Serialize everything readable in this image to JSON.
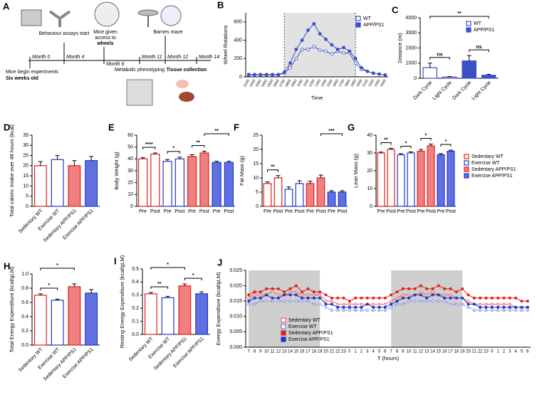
{
  "timeline": {
    "label": "A",
    "months": [
      "Month 0",
      "Month 4",
      "Month 6",
      "Month 11",
      "Month 12",
      "Month 14"
    ],
    "events": {
      "behaviour": "Behaviour assays start",
      "wheels_pre": "Mice given",
      "wheels_mid": "access to",
      "wheels": "wheels",
      "barnes": "Barnes maze",
      "begin": "Mice begin experiments",
      "age": "Six weeks old",
      "metabolic": "Metabolic phenotyping",
      "tissue": "Tissue collection"
    }
  },
  "chart_data": [
    {
      "type": "line",
      "label": "B",
      "ylabel": "Wheel Rotations",
      "xlabel": "Time",
      "categories": [
        "0100",
        "0200",
        "0300",
        "0400",
        "0500",
        "0600",
        "0700",
        "0800",
        "0900",
        "1000",
        "1100",
        "1200",
        "1300",
        "1400",
        "1500",
        "1600",
        "1700",
        "1800",
        "1900",
        "2000",
        "2100",
        "2200",
        "2300",
        "2400"
      ],
      "shade": [
        "0700",
        "1900"
      ],
      "ylim": [
        0,
        700
      ],
      "yticks": [
        0,
        200,
        400,
        600
      ],
      "legend": "top-right",
      "series": [
        {
          "name": "WT",
          "color": "#3a4fc8",
          "filled": false,
          "values": [
            20,
            20,
            20,
            20,
            20,
            20,
            40,
            100,
            200,
            300,
            300,
            330,
            290,
            280,
            250,
            280,
            260,
            260,
            150,
            80,
            60,
            40,
            30,
            20
          ]
        },
        {
          "name": "APP/PS1",
          "color": "#3a4fc8",
          "filled": true,
          "values": [
            25,
            25,
            25,
            25,
            25,
            25,
            50,
            150,
            300,
            400,
            510,
            580,
            470,
            410,
            350,
            300,
            320,
            280,
            200,
            100,
            60,
            40,
            30,
            20
          ]
        }
      ]
    },
    {
      "type": "bar",
      "label": "C",
      "ylabel": "Distance (m)",
      "categories": [
        "Dark Cycle",
        "Light Cycle",
        "Dark Cycle",
        "Light Cycle"
      ],
      "values": [
        700,
        80,
        1150,
        200
      ],
      "errors": [
        300,
        30,
        350,
        60
      ],
      "colors": [
        "#3a4fc8",
        "#3a4fc8",
        "#3a4fc8",
        "#3a4fc8"
      ],
      "fills": [
        "#ffffff",
        "#ffffff",
        "#3a4fc8",
        "#3a4fc8"
      ],
      "ylim": [
        0,
        4000
      ],
      "yticks": [
        0,
        1000,
        2000,
        3000,
        4000
      ],
      "annotations": [
        "ns",
        "ns",
        "**"
      ],
      "legend": "top-right",
      "legend_entries": [
        {
          "name": "WT",
          "color": "#3a4fc8",
          "fill": "#ffffff"
        },
        {
          "name": "APP/PS1",
          "color": "#3a4fc8",
          "fill": "#3a4fc8"
        }
      ]
    },
    {
      "type": "bar",
      "label": "D",
      "ylabel": "Total caloric intake over 48 hours (kcal)",
      "categories": [
        "Sedentary WT",
        "Exercise WT",
        "Sedentary APP/PS1",
        "Exercise APP/PS1"
      ],
      "values": [
        20,
        23,
        20,
        22.5
      ],
      "errors": [
        2,
        2,
        2.5,
        2
      ],
      "colors": [
        "#e0201c",
        "#2036c8",
        "#e0201c",
        "#2036c8"
      ],
      "fills": [
        "#ffffff",
        "#ffffff",
        "#f08080",
        "#6070e0"
      ],
      "ylim": [
        0,
        35
      ],
      "yticks": [
        0,
        5,
        10,
        15,
        20,
        25,
        30,
        35
      ],
      "annotations": []
    },
    {
      "type": "bar",
      "label": "E",
      "ylabel": "Body Weight (g)",
      "categories": [
        "Pre",
        "Post",
        "Pre",
        "Post",
        "Pre",
        "Post",
        "Pre",
        "Post"
      ],
      "values": [
        40,
        44,
        38,
        40,
        42,
        45,
        37,
        37
      ],
      "errors": [
        1,
        1,
        1.5,
        1.5,
        1.5,
        1.5,
        1,
        1
      ],
      "colors": [
        "#e0201c",
        "#e0201c",
        "#2036c8",
        "#2036c8",
        "#e0201c",
        "#e0201c",
        "#2036c8",
        "#2036c8"
      ],
      "fills": [
        "#ffffff",
        "#ffffff",
        "#ffffff",
        "#ffffff",
        "#f08080",
        "#f08080",
        "#6070e0",
        "#6070e0"
      ],
      "ylim": [
        0,
        60
      ],
      "yticks": [
        0,
        10,
        20,
        30,
        40,
        50,
        60
      ],
      "annotations": [
        "****",
        "*",
        "**",
        "**"
      ]
    },
    {
      "type": "bar",
      "label": "F",
      "ylabel": "Fat Mass (g)",
      "categories": [
        "Pre",
        "Post",
        "Pre",
        "Post",
        "Pre",
        "Post",
        "Pre",
        "Post"
      ],
      "values": [
        8,
        10,
        6,
        8,
        8,
        10,
        5,
        5
      ],
      "errors": [
        0.6,
        0.8,
        0.8,
        1,
        0.8,
        1,
        0.5,
        0.5
      ],
      "colors": [
        "#e0201c",
        "#e0201c",
        "#2036c8",
        "#2036c8",
        "#e0201c",
        "#e0201c",
        "#2036c8",
        "#2036c8"
      ],
      "fills": [
        "#ffffff",
        "#ffffff",
        "#ffffff",
        "#ffffff",
        "#f08080",
        "#f08080",
        "#6070e0",
        "#6070e0"
      ],
      "ylim": [
        0,
        25
      ],
      "yticks": [
        0,
        5,
        10,
        15,
        20,
        25
      ],
      "annotations": [
        "**",
        "***"
      ]
    },
    {
      "type": "bar",
      "label": "G",
      "ylabel": "Lean Mass (g)",
      "categories": [
        "Pre",
        "Post",
        "Pre",
        "Post",
        "Pre",
        "Post",
        "Pre",
        "Post"
      ],
      "values": [
        30,
        32,
        29,
        30,
        31,
        34,
        29,
        31
      ],
      "errors": [
        0.5,
        0.6,
        0.6,
        0.6,
        1,
        1,
        0.6,
        0.6
      ],
      "colors": [
        "#e0201c",
        "#e0201c",
        "#2036c8",
        "#2036c8",
        "#e0201c",
        "#e0201c",
        "#2036c8",
        "#2036c8"
      ],
      "fills": [
        "#ffffff",
        "#ffffff",
        "#ffffff",
        "#ffffff",
        "#f08080",
        "#f08080",
        "#6070e0",
        "#6070e0"
      ],
      "ylim": [
        0,
        40
      ],
      "yticks": [
        0,
        10,
        20,
        30,
        40
      ],
      "annotations": [
        "**",
        "*",
        "*",
        "*"
      ],
      "legend": "outside-right",
      "legend_entries": [
        {
          "name": "Sedentary WT",
          "color": "#e0201c",
          "fill": "#ffffff"
        },
        {
          "name": "Exercise WT",
          "color": "#2036c8",
          "fill": "#ffffff"
        },
        {
          "name": "Sedentary APP/PS1",
          "color": "#e0201c",
          "fill": "#f08080"
        },
        {
          "name": "Exercise APP/PS1",
          "color": "#2036c8",
          "fill": "#6070e0"
        }
      ]
    },
    {
      "type": "bar",
      "label": "H",
      "ylabel": "Total Energy Expenditure (kcal/gLM)",
      "categories": [
        "Sedentary WT",
        "Exercise WT",
        "Sedentary APP/PS1",
        "Exercise APP/PS1"
      ],
      "values": [
        0.7,
        0.63,
        0.82,
        0.73
      ],
      "errors": [
        0.02,
        0.015,
        0.04,
        0.05
      ],
      "colors": [
        "#e0201c",
        "#2036c8",
        "#e0201c",
        "#2036c8"
      ],
      "fills": [
        "#ffffff",
        "#ffffff",
        "#f08080",
        "#6070e0"
      ],
      "ylim": [
        0,
        1.0
      ],
      "yticks": [
        {
          "value": 0,
          "label": "0.0"
        },
        0.2,
        0.4,
        0.6,
        0.8,
        {
          "value": 1,
          "label": "1.0"
        }
      ],
      "annotations": [
        "*",
        "*"
      ]
    },
    {
      "type": "bar",
      "label": "I",
      "ylabel": "Resting Energy Expenditure (kcal/gLM)",
      "categories": [
        "Sedentary WT",
        "Exercise WT",
        "Sedentary APP/PS1",
        "Exercise APP/PS1"
      ],
      "values": [
        0.31,
        0.28,
        0.37,
        0.31
      ],
      "errors": [
        0.01,
        0.01,
        0.015,
        0.015
      ],
      "colors": [
        "#e0201c",
        "#2036c8",
        "#e0201c",
        "#2036c8"
      ],
      "fills": [
        "#ffffff",
        "#ffffff",
        "#f08080",
        "#6070e0"
      ],
      "ylim": [
        0,
        0.5
      ],
      "yticks": [
        {
          "value": 0,
          "label": "0.0"
        },
        0.1,
        0.2,
        0.3,
        0.4,
        0.5
      ],
      "annotations": [
        "**",
        "*",
        "*"
      ]
    },
    {
      "type": "line",
      "label": "J",
      "ylabel": "Energy Expenditure (kcal/gLM)",
      "xlabel": "T (hours)",
      "categories": [
        "7",
        "8",
        "9",
        "10",
        "11",
        "12",
        "13",
        "14",
        "15",
        "16",
        "17",
        "18",
        "19",
        "20",
        "21",
        "22",
        "23",
        "0",
        "1",
        "2",
        "3",
        "4",
        "5",
        "6",
        "7",
        "8",
        "9",
        "10",
        "11",
        "12",
        "13",
        "14",
        "15",
        "16",
        "17",
        "18",
        "19",
        "20",
        "21",
        "22",
        "23",
        "0",
        "1",
        "2",
        "3",
        "4",
        "5",
        "6"
      ],
      "shade": [
        "7",
        "19"
      ],
      "ylim": [
        0,
        0.025
      ],
      "yticks": [
        {
          "value": 0,
          "label": "0.000"
        },
        0.005,
        {
          "value": 0.01,
          "label": "0.010"
        },
        0.015,
        {
          "value": 0.02,
          "label": "0.020"
        },
        0.025
      ],
      "legend": "bottom-left",
      "series": [
        {
          "name": "Sedentary WT",
          "color": "#f06060",
          "filled": false,
          "values": [
            0.016,
            0.017,
            0.017,
            0.017,
            0.018,
            0.017,
            0.017,
            0.018,
            0.018,
            0.017,
            0.017,
            0.017,
            0.017,
            0.015,
            0.015,
            0.014,
            0.014,
            0.014,
            0.014,
            0.014,
            0.014,
            0.014,
            0.014,
            0.014,
            0.015,
            0.016,
            0.017,
            0.017,
            0.017,
            0.018,
            0.017,
            0.018,
            0.017,
            0.017,
            0.017,
            0.016,
            0.016,
            0.015,
            0.014,
            0.014,
            0.014,
            0.014,
            0.014,
            0.014,
            0.014,
            0.013,
            0.013,
            0.013
          ]
        },
        {
          "name": "Exercise WT",
          "color": "#7080e0",
          "filled": false,
          "values": [
            0.014,
            0.014,
            0.015,
            0.015,
            0.015,
            0.015,
            0.015,
            0.015,
            0.015,
            0.015,
            0.015,
            0.014,
            0.014,
            0.013,
            0.012,
            0.012,
            0.012,
            0.012,
            0.012,
            0.012,
            0.012,
            0.012,
            0.012,
            0.012,
            0.013,
            0.014,
            0.014,
            0.015,
            0.015,
            0.015,
            0.015,
            0.015,
            0.015,
            0.015,
            0.014,
            0.014,
            0.014,
            0.013,
            0.012,
            0.012,
            0.012,
            0.012,
            0.012,
            0.012,
            0.012,
            0.012,
            0.012,
            0.012
          ]
        },
        {
          "name": "Sedentary APP/PS1",
          "color": "#e0201c",
          "filled": true,
          "values": [
            0.017,
            0.018,
            0.018,
            0.019,
            0.019,
            0.019,
            0.018,
            0.019,
            0.02,
            0.018,
            0.019,
            0.018,
            0.018,
            0.017,
            0.016,
            0.016,
            0.016,
            0.015,
            0.016,
            0.016,
            0.016,
            0.016,
            0.016,
            0.016,
            0.017,
            0.018,
            0.019,
            0.019,
            0.019,
            0.02,
            0.019,
            0.019,
            0.02,
            0.019,
            0.019,
            0.018,
            0.019,
            0.017,
            0.016,
            0.016,
            0.016,
            0.016,
            0.016,
            0.016,
            0.016,
            0.016,
            0.015,
            0.015
          ]
        },
        {
          "name": "Exercise APP/PS1",
          "color": "#2036c8",
          "filled": true,
          "values": [
            0.015,
            0.016,
            0.016,
            0.017,
            0.016,
            0.016,
            0.017,
            0.017,
            0.017,
            0.016,
            0.016,
            0.016,
            0.016,
            0.014,
            0.014,
            0.013,
            0.013,
            0.013,
            0.013,
            0.013,
            0.014,
            0.013,
            0.013,
            0.013,
            0.014,
            0.015,
            0.016,
            0.016,
            0.017,
            0.017,
            0.016,
            0.017,
            0.017,
            0.016,
            0.016,
            0.016,
            0.016,
            0.014,
            0.014,
            0.013,
            0.013,
            0.013,
            0.013,
            0.013,
            0.013,
            0.013,
            0.013,
            0.013
          ]
        }
      ]
    }
  ]
}
